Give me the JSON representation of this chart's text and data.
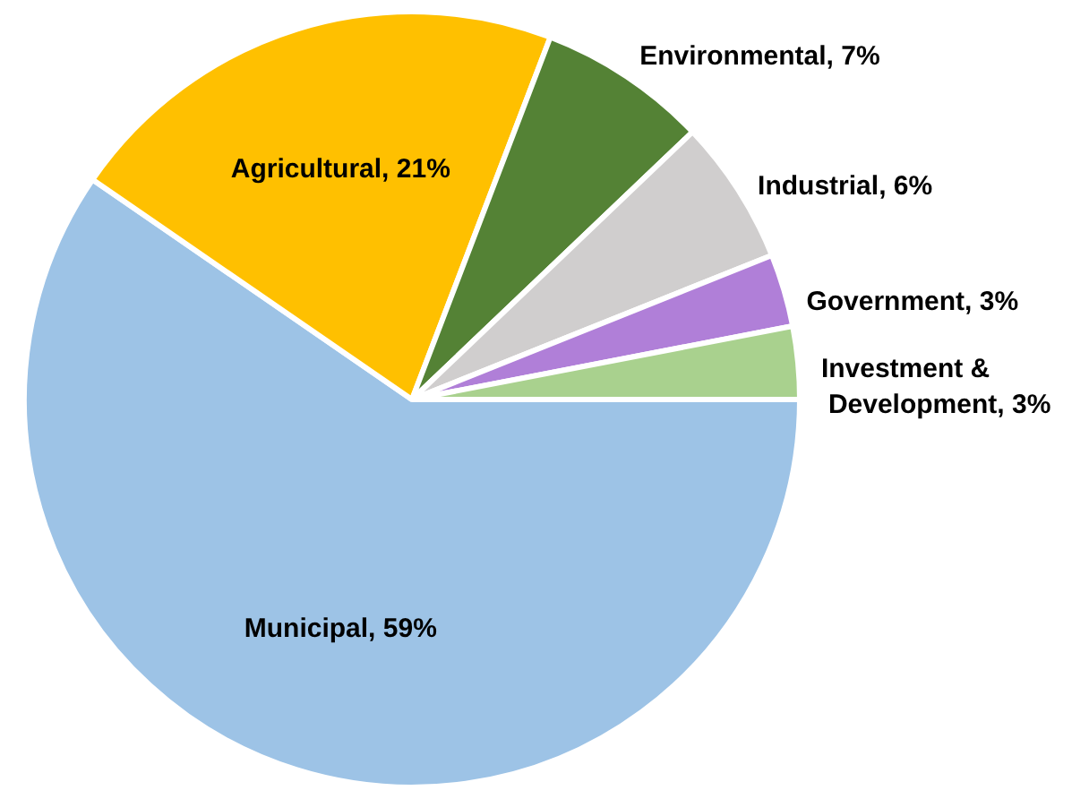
{
  "chart_data": {
    "type": "pie",
    "categories": [
      "Municipal",
      "Agricultural",
      "Environmental",
      "Industrial",
      "Government",
      "Investment & Development"
    ],
    "values": [
      59,
      21,
      7,
      6,
      3,
      3
    ],
    "value_labels": [
      "59%",
      "21%",
      "7%",
      "6%",
      "3%",
      "3%"
    ],
    "colors": [
      "#9dc3e6",
      "#ffc000",
      "#548235",
      "#d0cece",
      "#b07fd8",
      "#a9d18e"
    ]
  }
}
